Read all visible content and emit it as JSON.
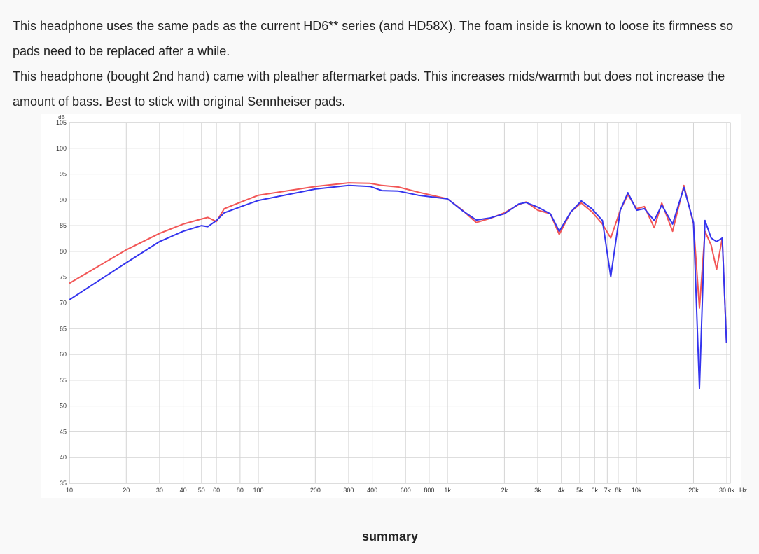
{
  "paragraphs": [
    "This headphone uses the same pads as the current HD6** series (and HD58X). The foam inside is known to loose its firmness so pads need to be replaced after a while.",
    "This headphone (bought 2nd hand) came with pleather aftermarket pads. This increases mids/warmth but does not increase the amount of bass. Best to stick with original Sennheiser pads."
  ],
  "chart_data": {
    "type": "line",
    "y_unit": "dB",
    "x_unit": "Hz",
    "log_x": true,
    "grid": true,
    "x": [
      10,
      20,
      30,
      40,
      50,
      54,
      60,
      66,
      81,
      100,
      200,
      300,
      390,
      450,
      550,
      700,
      1000,
      1200,
      1420,
      1680,
      2000,
      2380,
      2600,
      3000,
      3500,
      3900,
      4500,
      5100,
      5800,
      6600,
      7300,
      8200,
      9000,
      10000,
      11000,
      12400,
      13600,
      15500,
      17800,
      20000,
      21500,
      23000,
      24800,
      26500,
      28400,
      29900
    ],
    "series": [
      {
        "color": "#f25656",
        "values": [
          73.8,
          80.3,
          83.5,
          85.3,
          86.3,
          86.6,
          85.8,
          88.3,
          89.6,
          90.9,
          92.6,
          93.3,
          93.2,
          92.8,
          92.5,
          91.5,
          90.2,
          88.0,
          85.6,
          86.4,
          87.5,
          89.1,
          89.6,
          88.0,
          87.3,
          83.3,
          87.7,
          89.4,
          87.7,
          85.3,
          82.6,
          88.0,
          91.0,
          88.3,
          88.7,
          84.6,
          89.4,
          83.9,
          92.8,
          85.3,
          69.0,
          83.9,
          81.2,
          76.5,
          82.6,
          62.2
        ]
      },
      {
        "color": "#3434ee",
        "values": [
          70.6,
          77.8,
          81.9,
          83.9,
          85.0,
          84.8,
          86.0,
          87.5,
          88.7,
          89.9,
          92.1,
          92.8,
          92.6,
          91.8,
          91.7,
          90.9,
          90.2,
          87.9,
          86.1,
          86.5,
          87.3,
          89.2,
          89.5,
          88.6,
          87.3,
          83.9,
          87.7,
          89.8,
          88.3,
          86.0,
          75.1,
          88.0,
          91.4,
          88.0,
          88.3,
          86.0,
          89.0,
          85.3,
          92.4,
          85.6,
          53.4,
          86.0,
          82.6,
          81.9,
          82.6,
          62.2
        ]
      }
    ],
    "xlim": [
      10,
      31300
    ],
    "ylim": [
      35,
      105
    ],
    "xticks": [
      10,
      20,
      30,
      40,
      50,
      60,
      80,
      100,
      200,
      300,
      400,
      600,
      800,
      {
        "value": 1000,
        "label": "1k"
      },
      {
        "value": 2000,
        "label": "2k"
      },
      {
        "value": 3000,
        "label": "3k"
      },
      {
        "value": 4000,
        "label": "4k"
      },
      {
        "value": 5000,
        "label": "5k"
      },
      {
        "value": 6000,
        "label": "6k"
      },
      {
        "value": 7000,
        "label": "7k"
      },
      {
        "value": 8000,
        "label": "8k"
      },
      {
        "value": 10000,
        "label": "10k"
      },
      {
        "value": 20000,
        "label": "20k"
      },
      {
        "value": 30000,
        "label": "30,0k"
      }
    ],
    "yticks": [
      35,
      40,
      45,
      50,
      55,
      60,
      65,
      70,
      75,
      80,
      85,
      90,
      95,
      100,
      105
    ]
  },
  "caption": "summary"
}
